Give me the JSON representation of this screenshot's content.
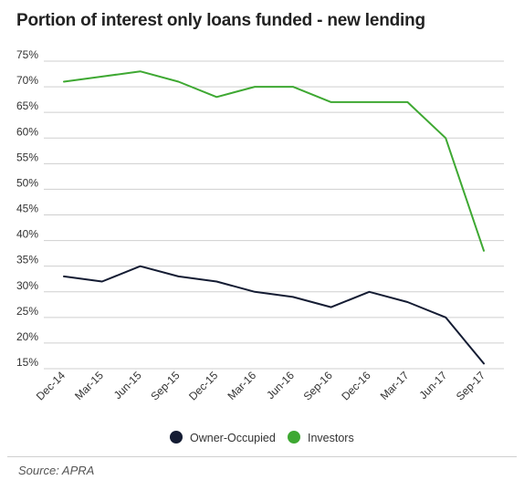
{
  "chart_data": {
    "type": "line",
    "title": "Portion of interest only loans funded - new lending",
    "categories": [
      "Dec-14",
      "Mar-15",
      "Jun-15",
      "Sep-15",
      "Dec-15",
      "Mar-16",
      "Jun-16",
      "Sep-16",
      "Dec-16",
      "Mar-17",
      "Jun-17",
      "Sep-17"
    ],
    "y_tick_labels": [
      "75%",
      "70%",
      "65%",
      "60%",
      "55%",
      "50%",
      "45%",
      "40%",
      "35%",
      "30%",
      "25%",
      "20%",
      "15%"
    ],
    "ylim": [
      15,
      75
    ],
    "y_unit": "%",
    "grid": true,
    "legend_position": "bottom-center",
    "series": [
      {
        "name": "Owner-Occupied",
        "color": "#141c33",
        "values": [
          33,
          32,
          35,
          33,
          32,
          30,
          29,
          27,
          30,
          28,
          25,
          16
        ]
      },
      {
        "name": "Investors",
        "color": "#3ea832",
        "values": [
          71,
          72,
          73,
          71,
          68,
          70,
          70,
          67,
          67,
          67,
          60,
          38
        ]
      }
    ]
  },
  "source": "Source: APRA"
}
